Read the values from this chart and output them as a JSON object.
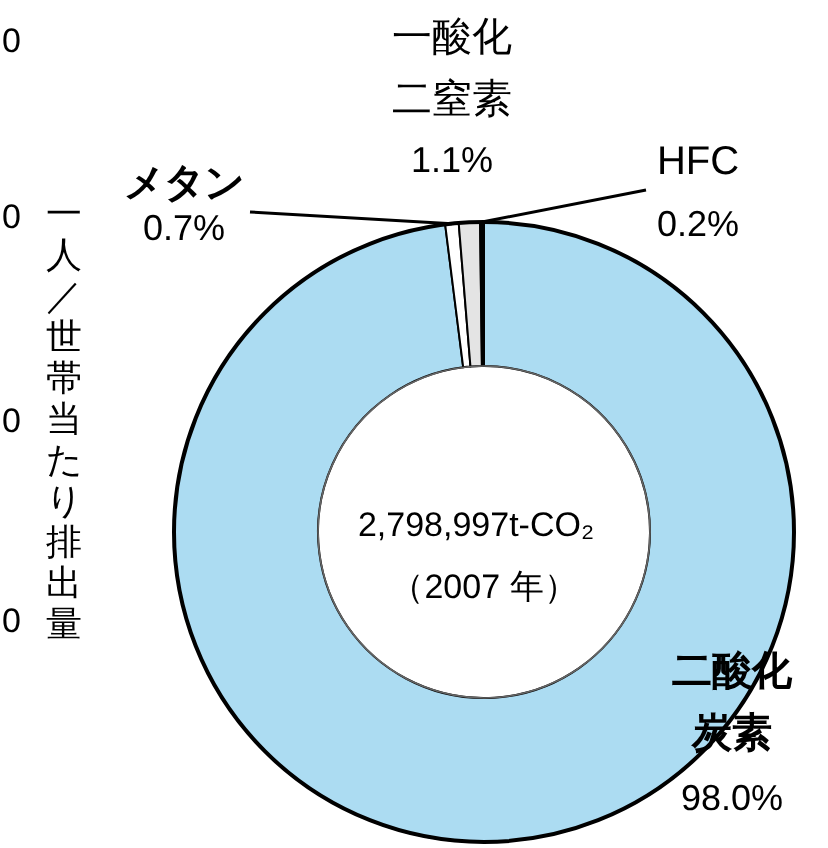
{
  "chart_data": {
    "type": "donut",
    "categories": [
      "二酸化炭素",
      "メタン",
      "一酸化二窒素",
      "HFC"
    ],
    "values": [
      98.0,
      0.7,
      1.1,
      0.2
    ],
    "colors": [
      "#acdcf2",
      "#ffffff",
      "#e4e4e4",
      "#000000"
    ],
    "value_labels": [
      "98.0%",
      "0.7%",
      "1.1%",
      "0.2%"
    ],
    "annotations": [
      "2,798,997t-CO₂",
      "（2007 年）",
      "一人／世帯当たり排出量",
      "0",
      "0",
      "0",
      "0"
    ]
  }
}
